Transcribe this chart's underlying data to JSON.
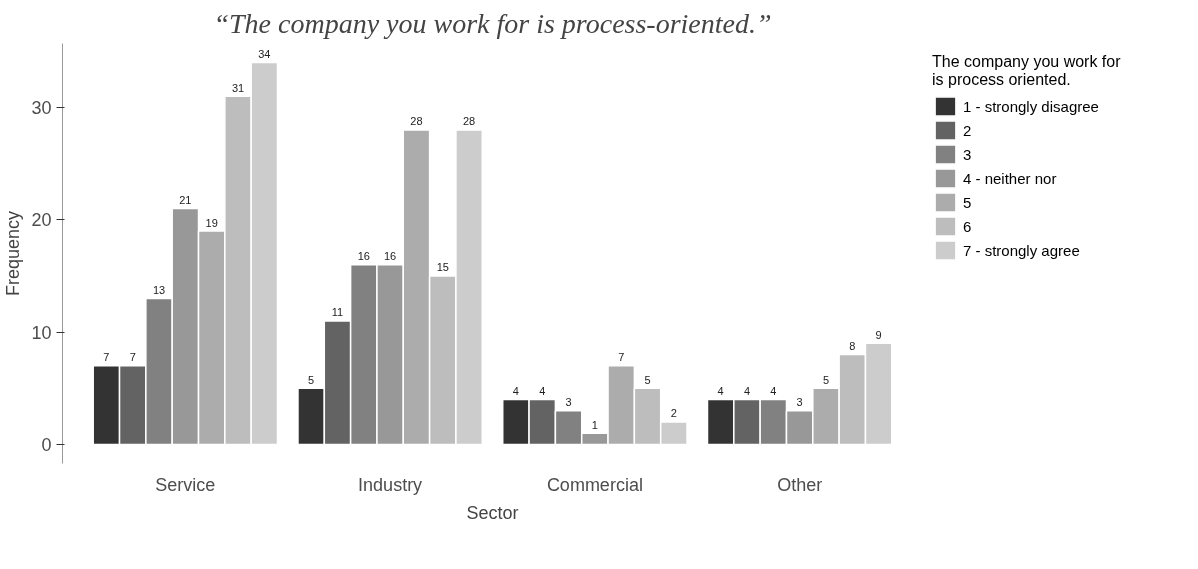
{
  "chart_data": {
    "type": "bar",
    "title": "“The company you work for is process-oriented.”",
    "xlabel": "Sector",
    "ylabel": "Frequency",
    "legend_title": "The company you work for is process oriented.",
    "categories": [
      "Service",
      "Industry",
      "Commercial",
      "Other"
    ],
    "series": [
      {
        "name": "1 - strongly disagree",
        "color": "#333333",
        "values": [
          7,
          5,
          4,
          4
        ]
      },
      {
        "name": "2",
        "color": "#636363",
        "values": [
          7,
          11,
          4,
          4
        ]
      },
      {
        "name": "3",
        "color": "#818181",
        "values": [
          13,
          16,
          3,
          4
        ]
      },
      {
        "name": "4 - neither nor",
        "color": "#989898",
        "values": [
          21,
          16,
          1,
          3
        ]
      },
      {
        "name": "5",
        "color": "#acacac",
        "values": [
          19,
          28,
          7,
          5
        ]
      },
      {
        "name": "6",
        "color": "#bdbdbd",
        "values": [
          31,
          15,
          5,
          8
        ]
      },
      {
        "name": "7 - strongly agree",
        "color": "#cccccc",
        "values": [
          34,
          28,
          2,
          9
        ]
      }
    ],
    "ylim": [
      -1.7,
      35.7
    ],
    "yticks": [
      0,
      10,
      20,
      30
    ],
    "grid": false,
    "legend": "right",
    "data_labels": true
  }
}
